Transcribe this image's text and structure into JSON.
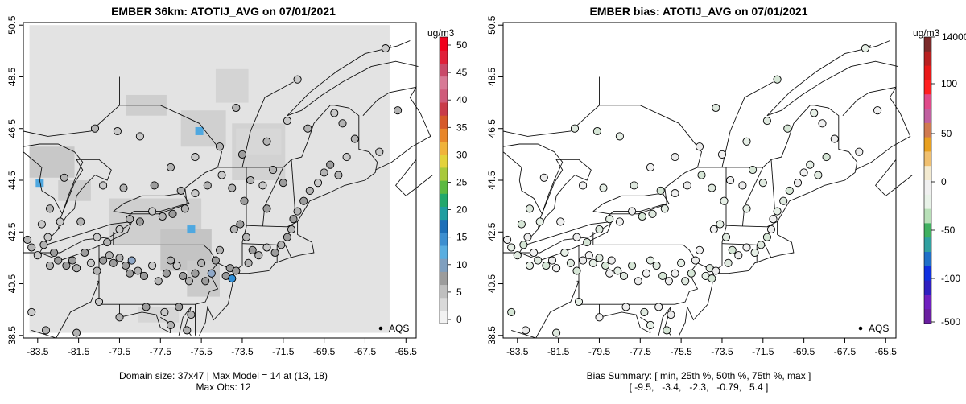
{
  "left_panel": {
    "title": "EMBER 36km: ATOTIJ_AVG on 07/01/2021",
    "footer_line1": "Domain size: 37x47 | Max Model = 14 at (13, 18)",
    "footer_line2": "Max Obs: 12",
    "legend_label": "AQS",
    "colorbar_units": "ug/m3",
    "colorbar_ticks": [
      "0",
      "5",
      "10",
      "15",
      "20",
      "25",
      "30",
      "35",
      "40",
      "45",
      "50"
    ],
    "colorbar_colors": [
      "#f2f2f2",
      "#d9d9d9",
      "#bfbfbf",
      "#9c9c9c",
      "#7f9fbf",
      "#5aaee0",
      "#3d8fd0",
      "#1d6fb8",
      "#1f9ea0",
      "#22a86c",
      "#5cb940",
      "#a8c93a",
      "#e3d23a",
      "#f0b33a",
      "#e8862a",
      "#d65a2a",
      "#c93c4a",
      "#cf5b7a",
      "#d87a96",
      "#c94a6a",
      "#e0203a",
      "#f0001c"
    ]
  },
  "right_panel": {
    "title": "EMBER bias: ATOTIJ_AVG on 07/01/2021",
    "footer_line1": "Bias Summary: [ min, 25th %, 50th %, 75th %, max ]",
    "footer_line2": "[ -9.5,   -3.4,   -2.3,   -0.79,   5.4 ]",
    "legend_label": "AQS",
    "colorbar_units": "ug/m3",
    "colorbar_top": "14000",
    "colorbar_ticks": [
      "100",
      "50",
      "0",
      "-50",
      "-100",
      "-500"
    ],
    "colorbar_colors": [
      "#7a2a2a",
      "#b82020",
      "#e81818",
      "#ff2020",
      "#e04a8a",
      "#c060a0",
      "#d07a50",
      "#e8a020",
      "#f0c070",
      "#f3ead0",
      "#f0f0f0",
      "#e8f2e8",
      "#b8e0b8",
      "#40b060",
      "#30a0a0",
      "#2070c8",
      "#1030e0",
      "#3020c0",
      "#7020c0",
      "#6a1fa0"
    ]
  },
  "chart_data": [
    {
      "type": "scatter",
      "title": "EMBER 36km: ATOTIJ_AVG on 07/01/2021",
      "xlabel": "",
      "ylabel": "",
      "xlim": [
        -84.2,
        -65.0
      ],
      "ylim": [
        38.4,
        50.6
      ],
      "x_ticks": [
        "-83.5",
        "-81.5",
        "-79.5",
        "-77.5",
        "-75.5",
        "-73.5",
        "-71.5",
        "-69.5",
        "-67.5",
        "-65.5"
      ],
      "y_ticks": [
        "38.5",
        "40.5",
        "42.5",
        "44.5",
        "46.5",
        "48.5",
        "50.5"
      ],
      "units": "ug/m3",
      "color_range": [
        0,
        50
      ],
      "legend": "AQS",
      "points": [
        [
          -84.0,
          42.2,
          5
        ],
        [
          -83.8,
          41.9,
          5
        ],
        [
          -83.5,
          41.6,
          4
        ],
        [
          -83.2,
          42.0,
          5
        ],
        [
          -83.0,
          42.3,
          4
        ],
        [
          -82.7,
          41.7,
          6
        ],
        [
          -82.9,
          41.2,
          5
        ],
        [
          -82.5,
          41.4,
          6
        ],
        [
          -82.1,
          41.2,
          7
        ],
        [
          -81.8,
          41.4,
          6
        ],
        [
          -81.6,
          41.1,
          5
        ],
        [
          -81.2,
          41.7,
          6
        ],
        [
          -80.9,
          41.3,
          4
        ],
        [
          -80.6,
          41.0,
          5
        ],
        [
          -80.3,
          41.4,
          6
        ],
        [
          -80.0,
          41.6,
          5
        ],
        [
          -79.8,
          41.3,
          6
        ],
        [
          -79.5,
          41.5,
          5
        ],
        [
          -79.2,
          41.2,
          7
        ],
        [
          -78.9,
          41.4,
          8
        ],
        [
          -79.0,
          40.9,
          6
        ],
        [
          -78.6,
          41.0,
          5
        ],
        [
          -78.3,
          40.8,
          6
        ],
        [
          -77.9,
          41.2,
          4
        ],
        [
          -77.6,
          40.6,
          5
        ],
        [
          -77.2,
          40.9,
          6
        ],
        [
          -77.0,
          41.4,
          5
        ],
        [
          -76.7,
          41.2,
          4
        ],
        [
          -76.4,
          40.8,
          6
        ],
        [
          -76.1,
          40.6,
          5
        ],
        [
          -75.8,
          40.9,
          6
        ],
        [
          -75.5,
          41.3,
          5
        ],
        [
          -75.3,
          40.6,
          6
        ],
        [
          -75.0,
          40.9,
          8
        ],
        [
          -74.8,
          41.4,
          6
        ],
        [
          -74.6,
          41.8,
          5
        ],
        [
          -74.3,
          40.8,
          6
        ],
        [
          -74.1,
          41.1,
          7
        ],
        [
          -74.0,
          40.7,
          12
        ],
        [
          -73.8,
          41.0,
          6
        ],
        [
          -73.9,
          42.6,
          5
        ],
        [
          -73.6,
          42.8,
          6
        ],
        [
          -73.3,
          42.3,
          5
        ],
        [
          -73.0,
          41.8,
          6
        ],
        [
          -72.7,
          41.6,
          5
        ],
        [
          -72.3,
          41.9,
          4
        ],
        [
          -71.9,
          41.7,
          6
        ],
        [
          -71.6,
          42.0,
          5
        ],
        [
          -71.3,
          42.3,
          7
        ],
        [
          -71.1,
          42.6,
          5
        ],
        [
          -71.0,
          43.0,
          6
        ],
        [
          -70.8,
          43.3,
          5
        ],
        [
          -70.5,
          43.7,
          6
        ],
        [
          -70.2,
          44.1,
          5
        ],
        [
          -69.8,
          44.4,
          4
        ],
        [
          -69.5,
          44.8,
          5
        ],
        [
          -69.2,
          45.1,
          6
        ],
        [
          -68.8,
          44.7,
          5
        ],
        [
          -68.4,
          45.4,
          4
        ],
        [
          -68.0,
          46.1,
          5
        ],
        [
          -68.6,
          46.7,
          5
        ],
        [
          -69.0,
          47.1,
          4
        ],
        [
          -71.5,
          44.4,
          6
        ],
        [
          -72.0,
          44.9,
          5
        ],
        [
          -72.5,
          44.3,
          4
        ],
        [
          -73.1,
          44.5,
          5
        ],
        [
          -73.4,
          43.7,
          6
        ],
        [
          -74.0,
          44.2,
          5
        ],
        [
          -74.5,
          44.7,
          4
        ],
        [
          -75.2,
          44.3,
          5
        ],
        [
          -75.8,
          44.0,
          4
        ],
        [
          -76.3,
          43.4,
          5
        ],
        [
          -76.9,
          43.2,
          6
        ],
        [
          -77.4,
          43.1,
          5
        ],
        [
          -77.9,
          43.3,
          4
        ],
        [
          -78.5,
          42.9,
          6
        ],
        [
          -79.0,
          43.0,
          5
        ],
        [
          -79.5,
          42.6,
          4
        ],
        [
          -80.1,
          42.1,
          5
        ],
        [
          -80.6,
          42.3,
          4
        ],
        [
          -81.4,
          42.9,
          5
        ],
        [
          -82.4,
          42.9,
          4
        ],
        [
          -82.9,
          43.4,
          5
        ],
        [
          -83.3,
          42.8,
          4
        ],
        [
          -82.2,
          44.6,
          5
        ],
        [
          -80.3,
          44.3,
          4
        ],
        [
          -79.3,
          44.2,
          5
        ],
        [
          -77.8,
          44.3,
          6
        ],
        [
          -76.5,
          44.1,
          5
        ],
        [
          -75.8,
          45.4,
          4
        ],
        [
          -77.0,
          45.0,
          5
        ],
        [
          -78.5,
          46.2,
          4
        ],
        [
          -80.7,
          46.5,
          5
        ],
        [
          -79.6,
          46.4,
          4
        ],
        [
          -74.6,
          45.8,
          5
        ],
        [
          -73.5,
          45.5,
          6
        ],
        [
          -72.3,
          46.0,
          5
        ],
        [
          -71.3,
          46.8,
          4
        ],
        [
          -70.3,
          46.5,
          5
        ],
        [
          -66.8,
          45.6,
          4
        ],
        [
          -65.9,
          47.2,
          5
        ],
        [
          -66.5,
          49.6,
          4
        ],
        [
          -73.8,
          47.3,
          5
        ],
        [
          -70.8,
          48.4,
          4
        ],
        [
          -76.0,
          39.3,
          5
        ],
        [
          -76.6,
          39.6,
          6
        ],
        [
          -77.0,
          38.9,
          5
        ],
        [
          -77.3,
          39.4,
          4
        ],
        [
          -76.2,
          38.7,
          5
        ],
        [
          -78.2,
          39.6,
          6
        ],
        [
          -79.5,
          39.2,
          5
        ],
        [
          -80.5,
          39.8,
          4
        ],
        [
          -81.6,
          38.6,
          5
        ],
        [
          -83.8,
          39.4,
          4
        ],
        [
          -83.1,
          38.7,
          5
        ],
        [
          -80.3,
          38.5,
          4
        ],
        [
          -72.3,
          43.4,
          6
        ],
        [
          -73.2,
          41.3,
          5
        ]
      ]
    },
    {
      "type": "scatter",
      "title": "EMBER bias: ATOTIJ_AVG on 07/01/2021",
      "xlabel": "",
      "ylabel": "",
      "xlim": [
        -84.2,
        -65.0
      ],
      "ylim": [
        38.4,
        50.6
      ],
      "x_ticks": [
        "-83.5",
        "-81.5",
        "-79.5",
        "-77.5",
        "-75.5",
        "-73.5",
        "-71.5",
        "-69.5",
        "-67.5",
        "-65.5"
      ],
      "y_ticks": [
        "38.5",
        "40.5",
        "42.5",
        "44.5",
        "46.5",
        "48.5",
        "50.5"
      ],
      "units": "ug/m3",
      "colorbar_ticks": [
        14000,
        100,
        50,
        0,
        -50,
        -100,
        -500
      ],
      "legend": "AQS",
      "bias_summary": {
        "min": -9.5,
        "p25": -3.4,
        "p50": -2.3,
        "p75": -0.79,
        "max": 5.4
      }
    }
  ]
}
